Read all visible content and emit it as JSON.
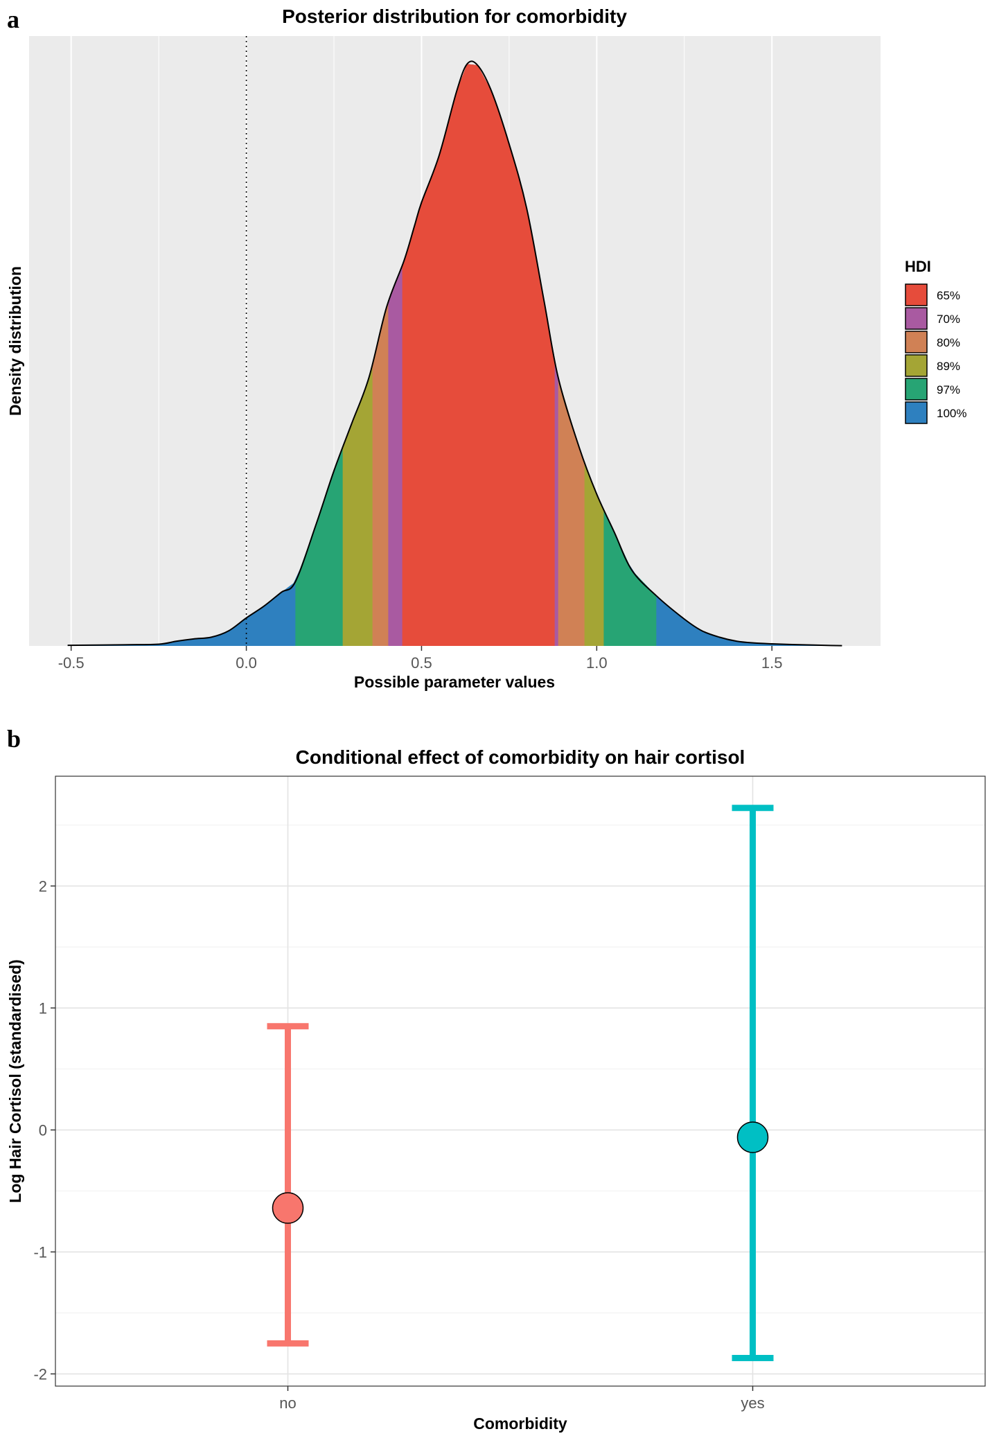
{
  "panels": {
    "a": {
      "letter": "a"
    },
    "b": {
      "letter": "b"
    }
  },
  "chart_data": [
    {
      "type": "area",
      "title": "Posterior distribution for comorbidity",
      "xlabel": "Possible parameter values",
      "ylabel": "Density distribution",
      "xlim": [
        -0.62,
        1.81
      ],
      "ylim": [
        0,
        1.045
      ],
      "x_ticks": [
        -0.5,
        0.0,
        0.5,
        1.0,
        1.5
      ],
      "x_tick_labels": [
        "-0.5",
        "0.0",
        "0.5",
        "1.0",
        "1.5"
      ],
      "y_ticks_shown": false,
      "grid": true,
      "background": "#EBEBEB",
      "reference_line": {
        "x": 0.0,
        "style": "dotted"
      },
      "density_curve": {
        "x": [
          -0.51,
          -0.35,
          -0.25,
          -0.2,
          -0.15,
          -0.1,
          -0.05,
          0.0,
          0.05,
          0.1,
          0.14,
          0.2,
          0.25,
          0.3,
          0.35,
          0.4,
          0.45,
          0.48,
          0.5,
          0.55,
          0.6,
          0.63,
          0.66,
          0.7,
          0.75,
          0.8,
          0.85,
          0.89,
          0.95,
          1.0,
          1.05,
          1.1,
          1.17,
          1.25,
          1.3,
          1.35,
          1.4,
          1.45,
          1.5,
          1.55,
          1.6,
          1.65,
          1.7
        ],
        "y": [
          0.001,
          0.002,
          0.003,
          0.008,
          0.012,
          0.015,
          0.026,
          0.048,
          0.068,
          0.092,
          0.11,
          0.21,
          0.3,
          0.38,
          0.46,
          0.58,
          0.66,
          0.72,
          0.76,
          0.84,
          0.95,
          0.997,
          0.995,
          0.95,
          0.86,
          0.75,
          0.59,
          0.46,
          0.34,
          0.26,
          0.195,
          0.13,
          0.086,
          0.046,
          0.026,
          0.015,
          0.008,
          0.005,
          0.0035,
          0.0025,
          0.0018,
          0.001,
          0.0005
        ]
      },
      "legend": {
        "title": "HDI",
        "position": "right",
        "entries": [
          {
            "label": "65%",
            "color": "#E64C3B"
          },
          {
            "label": "70%",
            "color": "#A95AA1"
          },
          {
            "label": "80%",
            "color": "#D08155"
          },
          {
            "label": "89%",
            "color": "#A4A535"
          },
          {
            "label": "97%",
            "color": "#27A474"
          },
          {
            "label": "100%",
            "color": "#2E80BF"
          }
        ]
      },
      "hdi_intervals": [
        {
          "level": "100%",
          "lo": -0.51,
          "hi": 1.7,
          "color": "#2E80BF"
        },
        {
          "level": "97%",
          "lo": 0.14,
          "hi": 1.17,
          "color": "#27A474"
        },
        {
          "level": "89%",
          "lo": 0.275,
          "hi": 1.02,
          "color": "#A4A535"
        },
        {
          "level": "80%",
          "lo": 0.36,
          "hi": 0.965,
          "color": "#D08155"
        },
        {
          "level": "70%",
          "lo": 0.405,
          "hi": 0.89,
          "color": "#A95AA1"
        },
        {
          "level": "65%",
          "lo": 0.445,
          "hi": 0.88,
          "color": "#E64C3B"
        }
      ]
    },
    {
      "type": "scatter",
      "title": "Conditional effect of comorbidity on hair cortisol",
      "xlabel": "Comorbidity",
      "ylabel": "Log Hair Cortisol (standardised)",
      "categories": [
        "no",
        "yes"
      ],
      "ylim": [
        -2.1,
        2.9
      ],
      "y_ticks": [
        -2,
        -1,
        0,
        1,
        2
      ],
      "y_tick_labels": [
        "-2",
        "-1",
        "0",
        "1",
        "2"
      ],
      "grid": true,
      "background": "#FFFFFF",
      "points": [
        {
          "category": "no",
          "estimate": -0.64,
          "lower": -1.75,
          "upper": 0.85,
          "color": "#F8766D"
        },
        {
          "category": "yes",
          "estimate": -0.06,
          "lower": -1.87,
          "upper": 2.64,
          "color": "#00BFC4"
        }
      ]
    }
  ]
}
